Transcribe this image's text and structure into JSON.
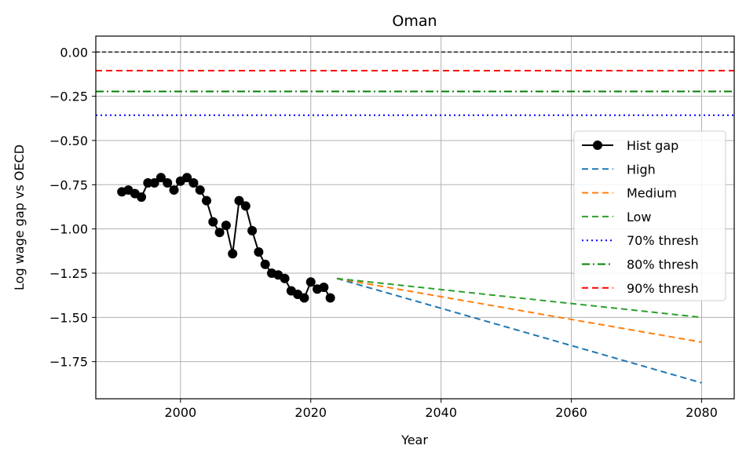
{
  "chart_data": {
    "type": "line",
    "title": "Oman",
    "xlabel": "Year",
    "ylabel": "Log wage gap vs OECD",
    "xlim": [
      1987,
      2085
    ],
    "ylim": [
      -1.96,
      0.09
    ],
    "xticks": [
      2000,
      2020,
      2040,
      2060,
      2080
    ],
    "yticks": [
      0.0,
      -0.25,
      -0.5,
      -0.75,
      -1.0,
      -1.25,
      -1.5,
      -1.75
    ],
    "ytick_labels": [
      "0.00",
      "−0.25",
      "−0.50",
      "−0.75",
      "−1.00",
      "−1.25",
      "−1.50",
      "−1.75"
    ],
    "grid": true,
    "legend_position": "center-right",
    "series": [
      {
        "name": "Hist gap",
        "style": "solid-marker",
        "color": "#000000",
        "x": [
          1991,
          1992,
          1993,
          1994,
          1995,
          1996,
          1997,
          1998,
          1999,
          2000,
          2001,
          2002,
          2003,
          2004,
          2005,
          2006,
          2007,
          2008,
          2009,
          2010,
          2011,
          2012,
          2013,
          2014,
          2015,
          2016,
          2017,
          2018,
          2019,
          2020,
          2021,
          2022,
          2023
        ],
        "y": [
          -0.79,
          -0.78,
          -0.8,
          -0.82,
          -0.74,
          -0.74,
          -0.71,
          -0.74,
          -0.78,
          -0.73,
          -0.71,
          -0.74,
          -0.78,
          -0.84,
          -0.96,
          -1.02,
          -0.98,
          -1.14,
          -0.84,
          -0.87,
          -1.01,
          -1.13,
          -1.2,
          -1.25,
          -1.26,
          -1.28,
          -1.35,
          -1.37,
          -1.39,
          -1.3,
          -1.34,
          -1.33,
          -1.39
        ]
      },
      {
        "name": "High",
        "style": "dashed",
        "color": "#1f77b4",
        "x": [
          2024,
          2080
        ],
        "y": [
          -1.28,
          -1.87
        ]
      },
      {
        "name": "Medium",
        "style": "dashed",
        "color": "#ff7f0e",
        "x": [
          2024,
          2080
        ],
        "y": [
          -1.28,
          -1.64
        ]
      },
      {
        "name": "Low",
        "style": "dashed",
        "color": "#2ca02c",
        "x": [
          2024,
          2080
        ],
        "y": [
          -1.28,
          -1.5
        ]
      },
      {
        "name": "70% thresh",
        "style": "dotted-hline",
        "color": "#0000ff",
        "y": -0.357
      },
      {
        "name": "80% thresh",
        "style": "dashdot-hline",
        "color": "#008000",
        "y": -0.223
      },
      {
        "name": "90% thresh",
        "style": "dashed-hline",
        "color": "#ff0000",
        "y": -0.105
      }
    ],
    "reference_line": {
      "y": 0.0,
      "color": "#000000",
      "style": "dashed-hline"
    }
  }
}
